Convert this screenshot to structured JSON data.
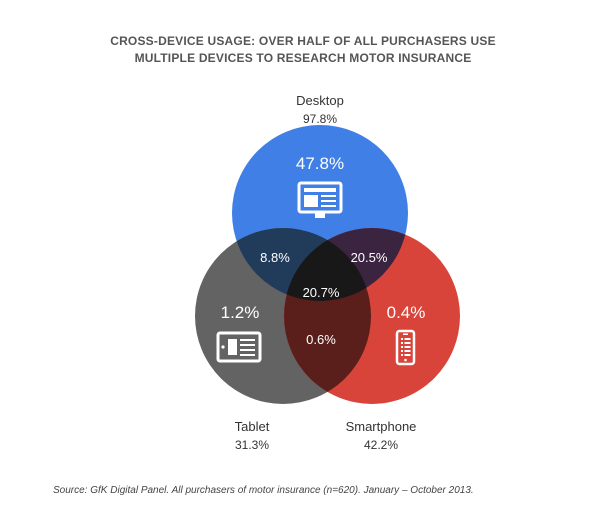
{
  "chart_data": {
    "type": "venn",
    "title_lines": [
      "CROSS-DEVICE USAGE: OVER HALF OF ALL PURCHASERS USE",
      "MULTIPLE DEVICES TO RESEARCH MOTOR INSURANCE"
    ],
    "sets": [
      {
        "key": "desktop",
        "name": "Desktop",
        "total": "97.8%",
        "only": "47.8%",
        "color": "#3F7FE6",
        "icon": "desktop-monitor-icon"
      },
      {
        "key": "tablet",
        "name": "Tablet",
        "total": "31.3%",
        "only": "1.2%",
        "color": "#636363",
        "icon": "tablet-icon"
      },
      {
        "key": "smartphone",
        "name": "Smartphone",
        "total": "42.2%",
        "only": "0.4%",
        "color": "#D9443A",
        "icon": "smartphone-icon"
      }
    ],
    "intersections": [
      {
        "sets": [
          "desktop",
          "tablet"
        ],
        "value": "8.8%"
      },
      {
        "sets": [
          "desktop",
          "smartphone"
        ],
        "value": "20.5%"
      },
      {
        "sets": [
          "tablet",
          "smartphone"
        ],
        "value": "0.6%"
      },
      {
        "sets": [
          "desktop",
          "tablet",
          "smartphone"
        ],
        "value": "20.7%"
      }
    ],
    "source": "Source: GfK Digital Panel. All purchasers of motor insurance (n=620). January – October 2013."
  }
}
